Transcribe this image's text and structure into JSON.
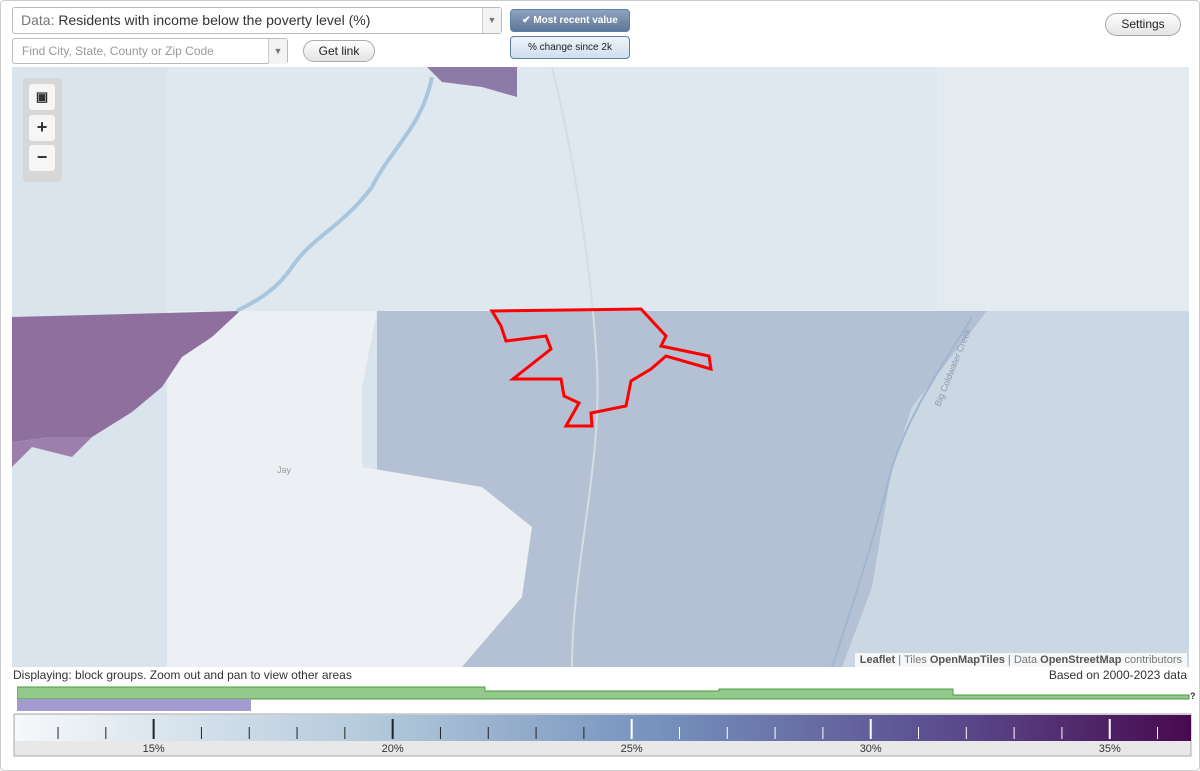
{
  "toolbar": {
    "data_label": "Data:",
    "data_value": "Residents with income below the poverty level (%)",
    "search_placeholder": "Find City, State, County or Zip Code",
    "get_link": "Get link",
    "mode_recent": "Most recent value",
    "mode_change": "% change since 2k",
    "settings": "Settings"
  },
  "map": {
    "place_label": "Jay",
    "creek_label": "Big Coldwater Creek",
    "attribution": {
      "leaflet": "Leaflet",
      "tiles": "Tiles",
      "tiles_source": "OpenMapTiles",
      "data": "Data",
      "data_source": "OpenStreetMap",
      "contributors": "contributors"
    }
  },
  "footer": {
    "displaying": "Displaying: block groups. Zoom out and pan to view other areas",
    "based_on": "Based on 2000-2023 data",
    "help": "?"
  },
  "legend": {
    "range": [
      12.1,
      36.7
    ],
    "ticks": [
      {
        "value": 15,
        "label": "15%"
      },
      {
        "value": 20,
        "label": "20%"
      },
      {
        "value": 25,
        "label": "25%"
      },
      {
        "value": 30,
        "label": "30%"
      },
      {
        "value": 35,
        "label": "35%"
      }
    ],
    "minor_ticks": [
      13,
      14,
      16,
      17,
      18,
      19,
      21,
      22,
      23,
      24,
      26,
      27,
      28,
      29,
      31,
      32,
      33,
      34,
      36
    ]
  }
}
